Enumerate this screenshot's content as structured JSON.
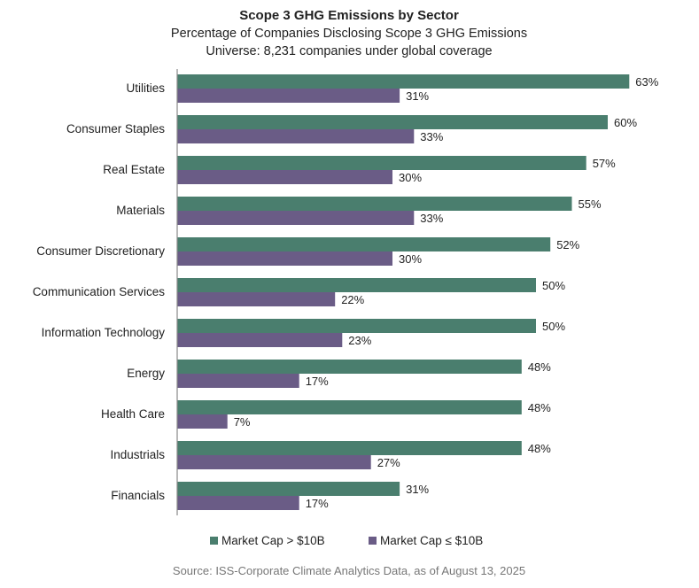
{
  "chart_data": {
    "type": "bar",
    "orientation": "horizontal",
    "title": "Scope 3 GHG Emissions by Sector",
    "subtitle": "Percentage of Companies Disclosing Scope 3 GHG Emissions",
    "subtitle2": "Universe: 8,231 companies under global coverage",
    "categories": [
      "Utilities",
      "Consumer Staples",
      "Real Estate",
      "Materials",
      "Consumer Discretionary",
      "Communication Services",
      "Information Technology",
      "Energy",
      "Health Care",
      "Industrials",
      "Financials"
    ],
    "series": [
      {
        "name": "Market Cap > $10B",
        "color": "#4a7e6e",
        "values": [
          63,
          60,
          57,
          55,
          52,
          50,
          50,
          48,
          48,
          48,
          31
        ],
        "labels": [
          "63%",
          "60%",
          "57%",
          "55%",
          "52%",
          "50%",
          "50%",
          "48%",
          "48%",
          "48%",
          "31%"
        ]
      },
      {
        "name": "Market Cap ≤ $10B",
        "color": "#6a5c86",
        "values": [
          31,
          33,
          30,
          33,
          30,
          22,
          23,
          17,
          7,
          27,
          17
        ],
        "labels": [
          "31%",
          "33%",
          "30%",
          "33%",
          "30%",
          "22%",
          "23%",
          "17%",
          "7%",
          "27%",
          "17%"
        ]
      }
    ],
    "xlim": [
      0,
      70
    ],
    "value_suffix": "%",
    "grid": false,
    "legend_position": "bottom",
    "source": "Source: ISS-Corporate Climate Analytics Data, as of August 13, 2025"
  }
}
